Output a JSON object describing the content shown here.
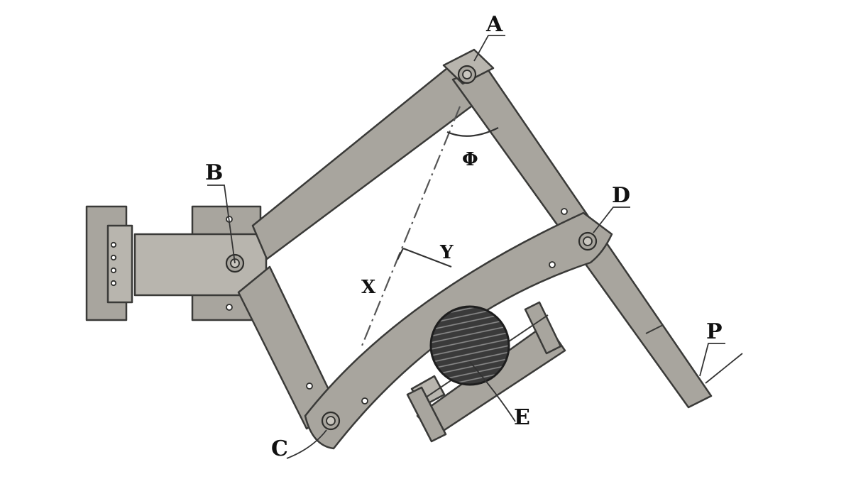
{
  "labels": {
    "A": "A",
    "B": "B",
    "C": "C",
    "D": "D",
    "E": "E",
    "P": "P",
    "X": "X",
    "Y": "Y",
    "phi": "Φ"
  },
  "colors": {
    "metal": "#a8a59e",
    "outline": "#3a3a38",
    "roller_hatch": "#2b2b2b",
    "background": "#ffffff"
  }
}
